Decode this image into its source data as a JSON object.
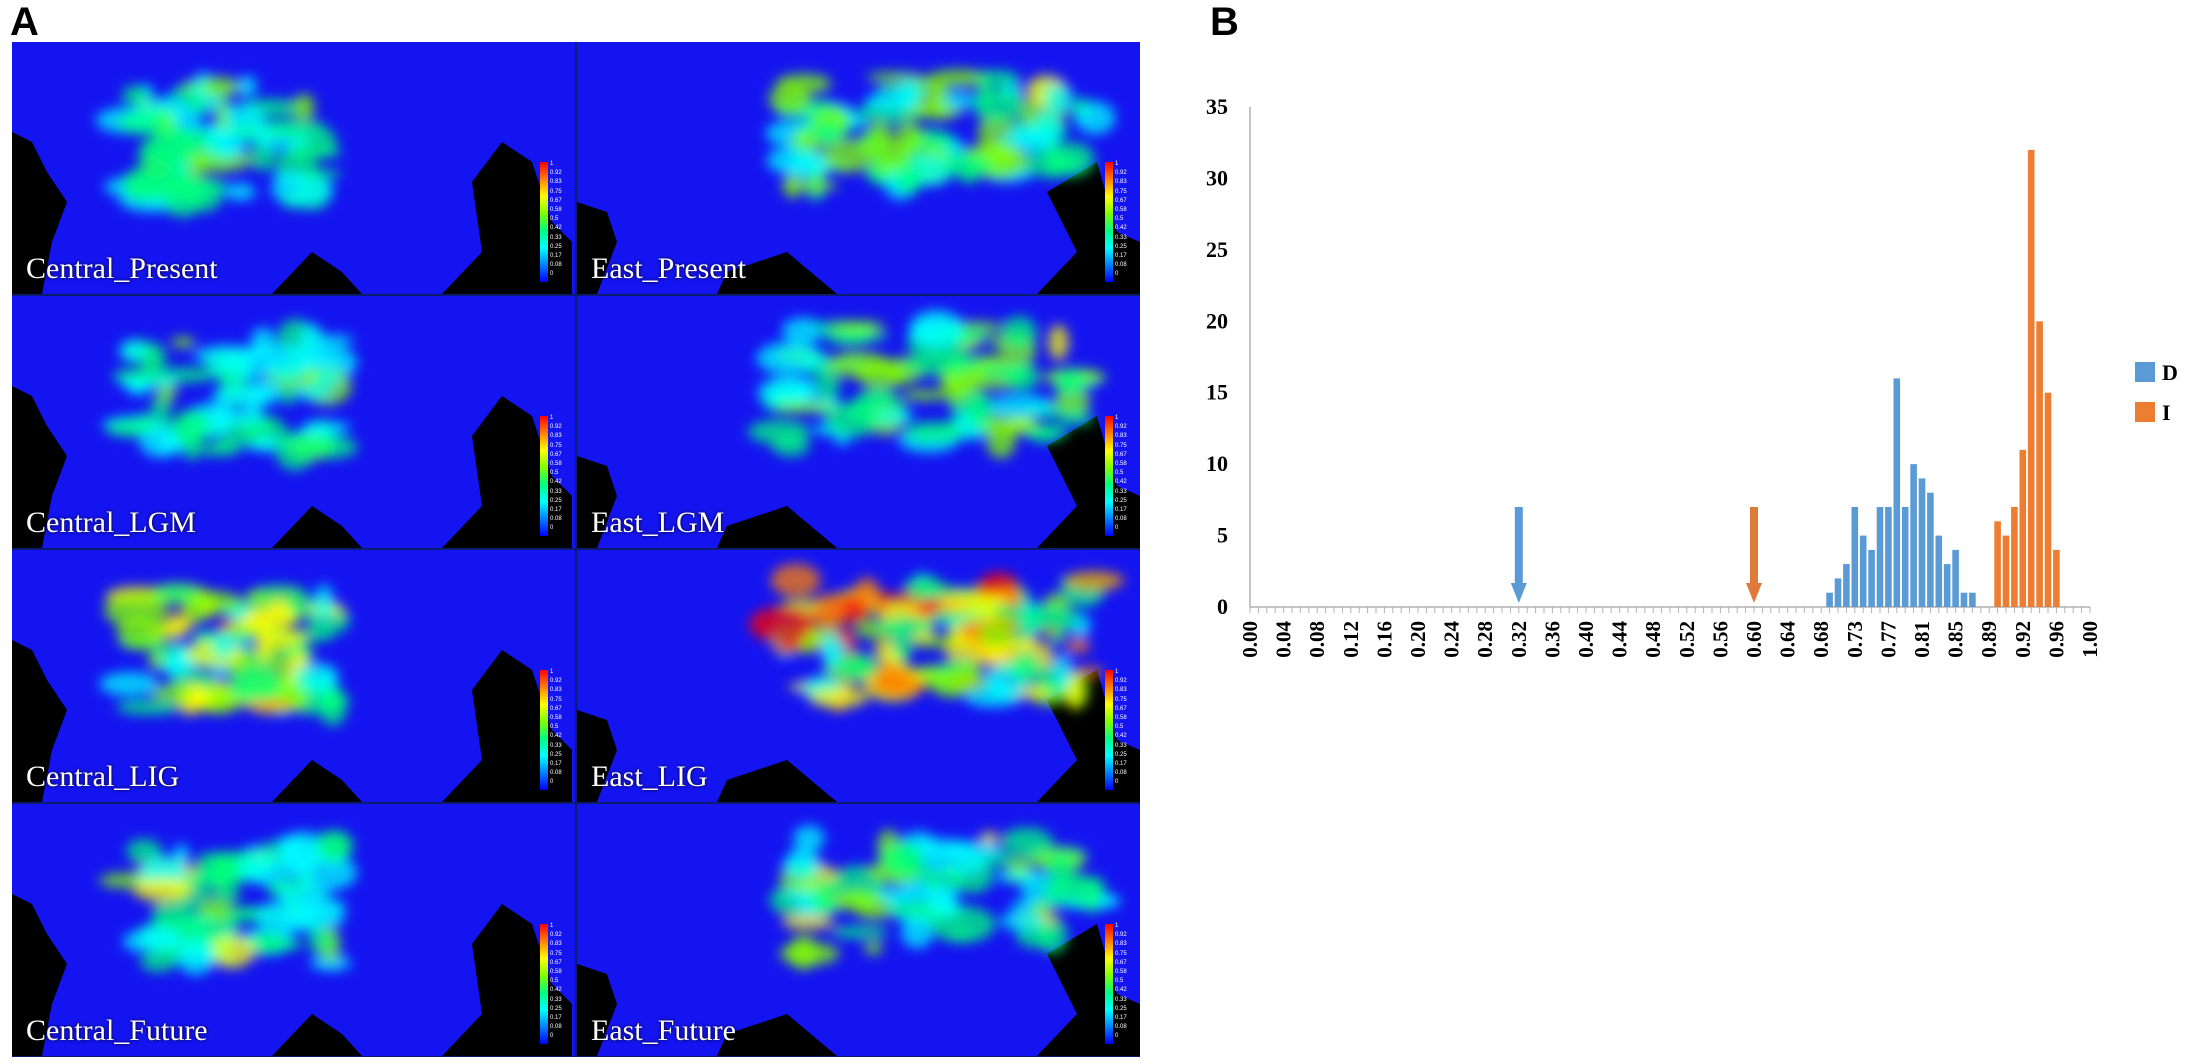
{
  "panels": {
    "a_label": "A",
    "b_label": "B"
  },
  "maps": [
    {
      "label": "Central_Present",
      "col": 0,
      "row": 0,
      "intensity": 0.35,
      "extent": "central"
    },
    {
      "label": "East_Present",
      "col": 1,
      "row": 0,
      "intensity": 0.5,
      "extent": "east"
    },
    {
      "label": "Central_LGM",
      "col": 0,
      "row": 1,
      "intensity": 0.3,
      "extent": "central"
    },
    {
      "label": "East_LGM",
      "col": 1,
      "row": 1,
      "intensity": 0.45,
      "extent": "east"
    },
    {
      "label": "Central_LIG",
      "col": 0,
      "row": 2,
      "intensity": 0.6,
      "extent": "central"
    },
    {
      "label": "East_LIG",
      "col": 1,
      "row": 2,
      "intensity": 0.95,
      "extent": "east"
    },
    {
      "label": "Central_Future",
      "col": 0,
      "row": 3,
      "intensity": 0.35,
      "extent": "central"
    },
    {
      "label": "East_Future",
      "col": 1,
      "row": 3,
      "intensity": 0.45,
      "extent": "east"
    }
  ],
  "map_colors": {
    "ocean": "#1414f0",
    "land_black": "#000000"
  },
  "colorbar_ticks": [
    "1",
    "0.92",
    "0.83",
    "0.75",
    "0.67",
    "0.58",
    "0.5",
    "0.42",
    "0.33",
    "0.25",
    "0.17",
    "0.08",
    "0"
  ],
  "chart_data": {
    "type": "bar",
    "title": "",
    "xlabel": "",
    "ylabel": "",
    "ylim": [
      0,
      35
    ],
    "yticks": [
      "0",
      "5",
      "10",
      "15",
      "20",
      "25",
      "30",
      "35"
    ],
    "xtick_labels": [
      "0.00",
      "0.04",
      "0.08",
      "0.12",
      "0.16",
      "0.20",
      "0.24",
      "0.28",
      "0.32",
      "0.36",
      "0.40",
      "0.44",
      "0.48",
      "0.52",
      "0.56",
      "0.60",
      "0.64",
      "0.68",
      "0.73",
      "0.77",
      "0.81",
      "0.85",
      "0.89",
      "0.92",
      "0.96",
      "1.00"
    ],
    "bin_width": 0.01,
    "legend_position": "right",
    "series": [
      {
        "name": "D",
        "color": "#5b9bd5",
        "x": [
          0.69,
          0.7,
          0.71,
          0.72,
          0.73,
          0.74,
          0.75,
          0.76,
          0.77,
          0.78,
          0.79,
          0.8,
          0.81,
          0.82,
          0.83,
          0.84,
          0.85,
          0.86
        ],
        "values": [
          1,
          2,
          3,
          7,
          5,
          4,
          7,
          7,
          16,
          7,
          10,
          9,
          8,
          5,
          3,
          4,
          1,
          1
        ]
      },
      {
        "name": "I",
        "color": "#ed7d31",
        "x": [
          0.89,
          0.9,
          0.91,
          0.92,
          0.93,
          0.94,
          0.95,
          0.96,
          0.97
        ],
        "values": [
          6,
          5,
          7,
          11,
          32,
          20,
          15,
          4,
          0
        ]
      }
    ],
    "arrows": [
      {
        "x": 0.32,
        "color": "#5b9bd5",
        "height": 7
      },
      {
        "x": 0.6,
        "color": "#e07a3a",
        "height": 7
      }
    ]
  }
}
